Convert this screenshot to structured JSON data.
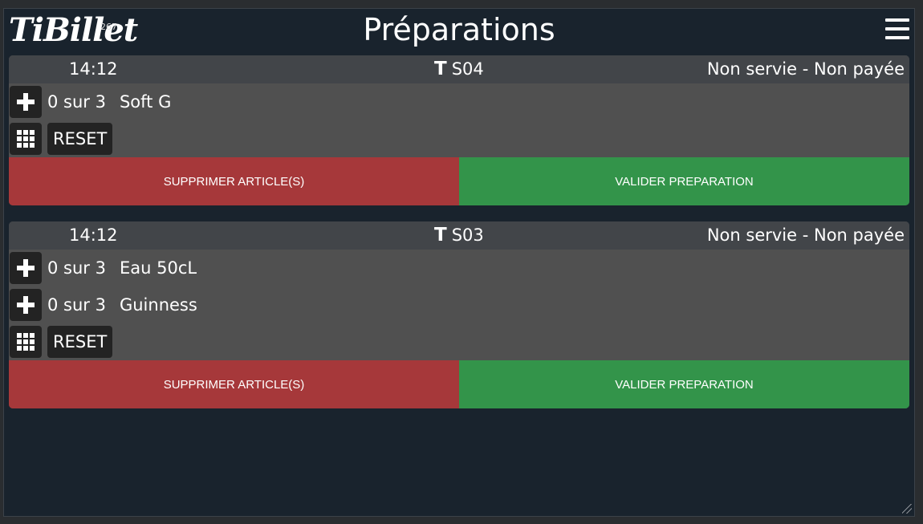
{
  "app": {
    "logo": "TiBillet",
    "logo_sup": "267",
    "title": "Préparations"
  },
  "orders": [
    {
      "time": "14:12",
      "table": "S04",
      "status": "Non servie - Non payée",
      "items": [
        {
          "count": "0 sur 3",
          "name": "Soft G"
        }
      ],
      "reset_label": "RESET",
      "delete_label": "SUPPRIMER ARTICLE(S)",
      "validate_label": "VALIDER PREPARATION"
    },
    {
      "time": "14:12",
      "table": "S03",
      "status": "Non servie - Non payée",
      "items": [
        {
          "count": "0 sur 3",
          "name": "Eau 50cL"
        },
        {
          "count": "0 sur 3",
          "name": "Guinness"
        }
      ],
      "reset_label": "RESET",
      "delete_label": "SUPPRIMER ARTICLE(S)",
      "validate_label": "VALIDER PREPARATION"
    }
  ],
  "colors": {
    "delete": "#a6383a",
    "validate": "#33944a",
    "background": "#19232d"
  },
  "icons": {
    "menu": "hamburger-menu-icon",
    "table": "table-icon",
    "add": "plus-icon",
    "keypad": "keypad-grid-icon"
  }
}
